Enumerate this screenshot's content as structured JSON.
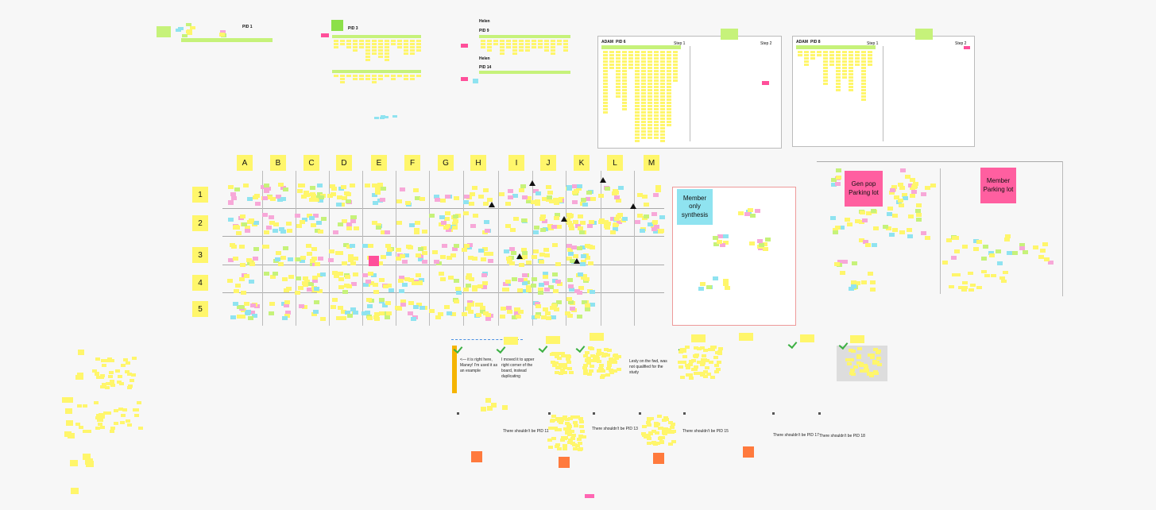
{
  "board": {
    "top_frames": [
      {
        "label": "PID 1"
      },
      {
        "label": "PID 3"
      },
      {
        "owner": "Helen",
        "label": "PID 9"
      },
      {
        "owner": "Helen",
        "label": "PID 14"
      },
      {
        "owner": "ADAM",
        "label": "PID 6",
        "steps": [
          "Step 1",
          "Step 2"
        ]
      },
      {
        "owner": "ADAM",
        "label": "PID 8",
        "steps": [
          "Step 1",
          "Step 2"
        ]
      }
    ],
    "grid": {
      "columns": [
        "A",
        "B",
        "C",
        "D",
        "E",
        "F",
        "G",
        "H",
        "I",
        "J",
        "K",
        "L",
        "M"
      ],
      "rows": [
        "1",
        "2",
        "3",
        "4",
        "5"
      ]
    },
    "synthesis": {
      "member_only": "Member only synthesis",
      "gen_pop": "Gen pop Parking lot",
      "member_parking": "Member Parking lot"
    },
    "comments": [
      "<— it is right here, Maney! I'm used it as an example",
      "I moved it to upper right corner of the board, instead duplicating",
      "Lesly on the fwd, was not qualified for the study"
    ],
    "pid_notes": [
      "There shouldn't be PID 11",
      "There shouldn't be PID 13",
      "There shouldn't be PID 15",
      "There shouldn't be PID 17",
      "There shouldn't be PID 18"
    ]
  }
}
